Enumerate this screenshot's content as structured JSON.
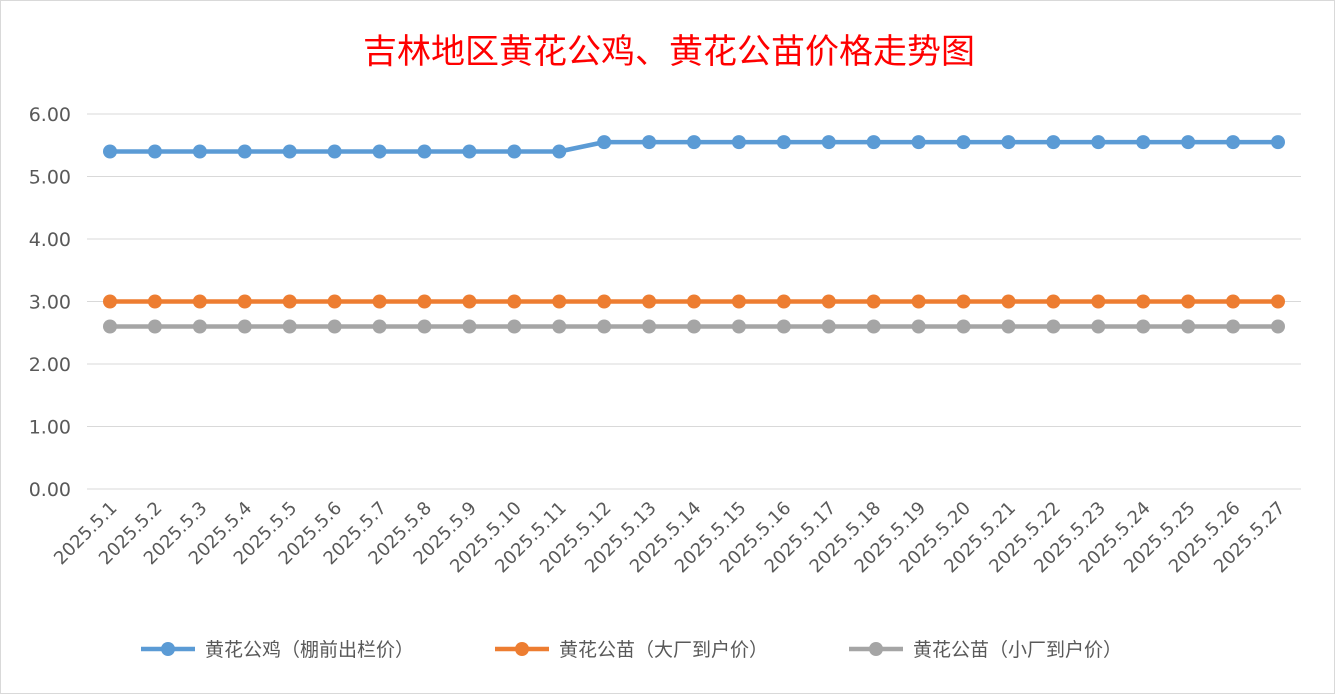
{
  "chart_data": {
    "type": "line",
    "title": "吉林地区黄花公鸡、黄花公苗价格走势图",
    "xlabel": "",
    "ylabel": "",
    "ylim": [
      0,
      6
    ],
    "y_ticks": [
      "0.00",
      "1.00",
      "2.00",
      "3.00",
      "4.00",
      "5.00",
      "6.00"
    ],
    "grid": true,
    "legend_position": "bottom",
    "categories": [
      "2025.5.1",
      "2025.5.2",
      "2025.5.3",
      "2025.5.4",
      "2025.5.5",
      "2025.5.6",
      "2025.5.7",
      "2025.5.8",
      "2025.5.9",
      "2025.5.10",
      "2025.5.11",
      "2025.5.12",
      "2025.5.13",
      "2025.5.14",
      "2025.5.15",
      "2025.5.16",
      "2025.5.17",
      "2025.5.18",
      "2025.5.19",
      "2025.5.20",
      "2025.5.21",
      "2025.5.22",
      "2025.5.23",
      "2025.5.24",
      "2025.5.25",
      "2025.5.26",
      "2025.5.27"
    ],
    "series": [
      {
        "name": "黄花公鸡（棚前出栏价）",
        "color": "#5b9bd5",
        "values": [
          5.4,
          5.4,
          5.4,
          5.4,
          5.4,
          5.4,
          5.4,
          5.4,
          5.4,
          5.4,
          5.4,
          5.55,
          5.55,
          5.55,
          5.55,
          5.55,
          5.55,
          5.55,
          5.55,
          5.55,
          5.55,
          5.55,
          5.55,
          5.55,
          5.55,
          5.55,
          5.55
        ]
      },
      {
        "name": "黄花公苗（大厂到户价）",
        "color": "#ed7d31",
        "values": [
          3.0,
          3.0,
          3.0,
          3.0,
          3.0,
          3.0,
          3.0,
          3.0,
          3.0,
          3.0,
          3.0,
          3.0,
          3.0,
          3.0,
          3.0,
          3.0,
          3.0,
          3.0,
          3.0,
          3.0,
          3.0,
          3.0,
          3.0,
          3.0,
          3.0,
          3.0,
          3.0
        ]
      },
      {
        "name": "黄花公苗（小厂到户价）",
        "color": "#a5a5a5",
        "values": [
          2.6,
          2.6,
          2.6,
          2.6,
          2.6,
          2.6,
          2.6,
          2.6,
          2.6,
          2.6,
          2.6,
          2.6,
          2.6,
          2.6,
          2.6,
          2.6,
          2.6,
          2.6,
          2.6,
          2.6,
          2.6,
          2.6,
          2.6,
          2.6,
          2.6,
          2.6,
          2.6
        ]
      }
    ]
  }
}
